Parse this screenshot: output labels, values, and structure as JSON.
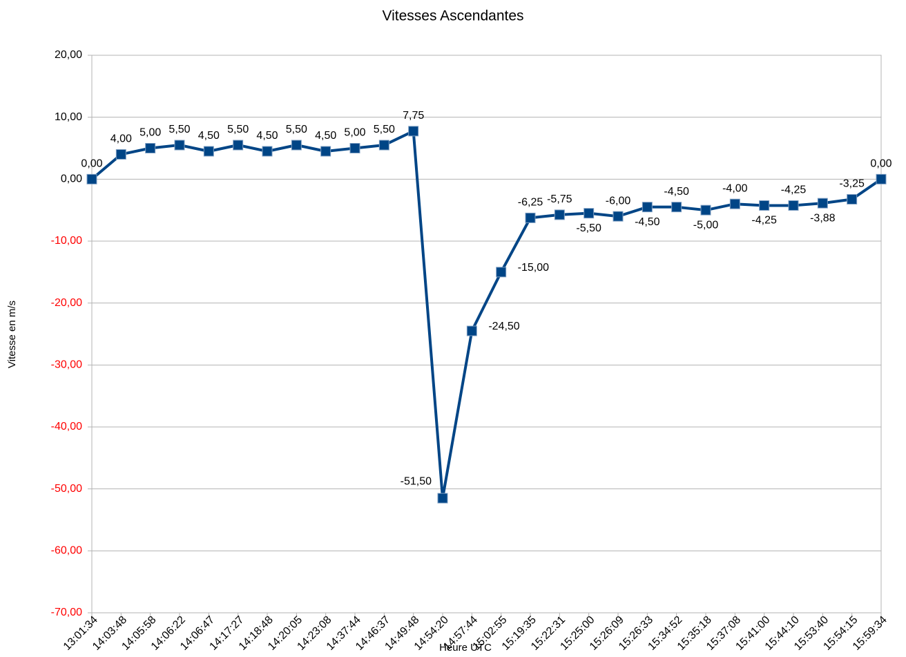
{
  "chart_data": {
    "type": "line",
    "title": "Vitesses Ascendantes",
    "y_label": "Vitesse en m/s",
    "x_label": "Heure UTC",
    "categories": [
      "13:01:34",
      "14:03:48",
      "14:05:58",
      "14:06:22",
      "14:06:47",
      "14:17:27",
      "14:18:48",
      "14:20:05",
      "14:23:08",
      "14:37:44",
      "14:46:37",
      "14:49:48",
      "14:54:20",
      "14:57:44",
      "15:02:55",
      "15:19:35",
      "15:22:31",
      "15:25:00",
      "15:26:09",
      "15:26:33",
      "15:34:52",
      "15:35:18",
      "15:37:08",
      "15:41:00",
      "15:44:10",
      "15:53:40",
      "15:54:15",
      "15:59:34"
    ],
    "series": [
      {
        "color": "#004586",
        "values": [
          0,
          4,
          5,
          5.5,
          4.5,
          5.5,
          4.5,
          5.5,
          4.5,
          5,
          5.5,
          7.75,
          -51.5,
          -24.5,
          -15,
          -6.25,
          -5.75,
          -5.5,
          -6,
          -4.5,
          -4.5,
          -5,
          -4,
          -4.25,
          -4.25,
          -3.88,
          -3.25,
          0
        ],
        "value_labels": [
          "0,00",
          "4,00",
          "5,00",
          "5,50",
          "4,50",
          "5,50",
          "4,50",
          "5,50",
          "4,50",
          "5,00",
          "5,50",
          "7,75",
          "-51,50",
          "-24,50",
          "-15,00",
          "-6,25",
          "-5,75",
          "-5,50",
          "-6,00",
          "-4,50",
          "-4,50",
          "-5,00",
          "-4,00",
          "-4,25",
          "-4,25",
          "-3,88",
          "-3,25",
          "0,00"
        ]
      }
    ],
    "ylim": [
      -70,
      20
    ],
    "yticks": [
      {
        "value": 20,
        "label": "20,00"
      },
      {
        "value": 10,
        "label": "10,00"
      },
      {
        "value": 0,
        "label": "0,00"
      },
      {
        "value": -10,
        "label": "-10,00"
      },
      {
        "value": -20,
        "label": "-20,00"
      },
      {
        "value": -30,
        "label": "-30,00"
      },
      {
        "value": -40,
        "label": "-40,00"
      },
      {
        "value": -50,
        "label": "-50,00"
      },
      {
        "value": -60,
        "label": "-60,00"
      },
      {
        "value": -70,
        "label": "-70,00"
      }
    ],
    "grid": true,
    "negative_tick_color": "#ff0000"
  }
}
